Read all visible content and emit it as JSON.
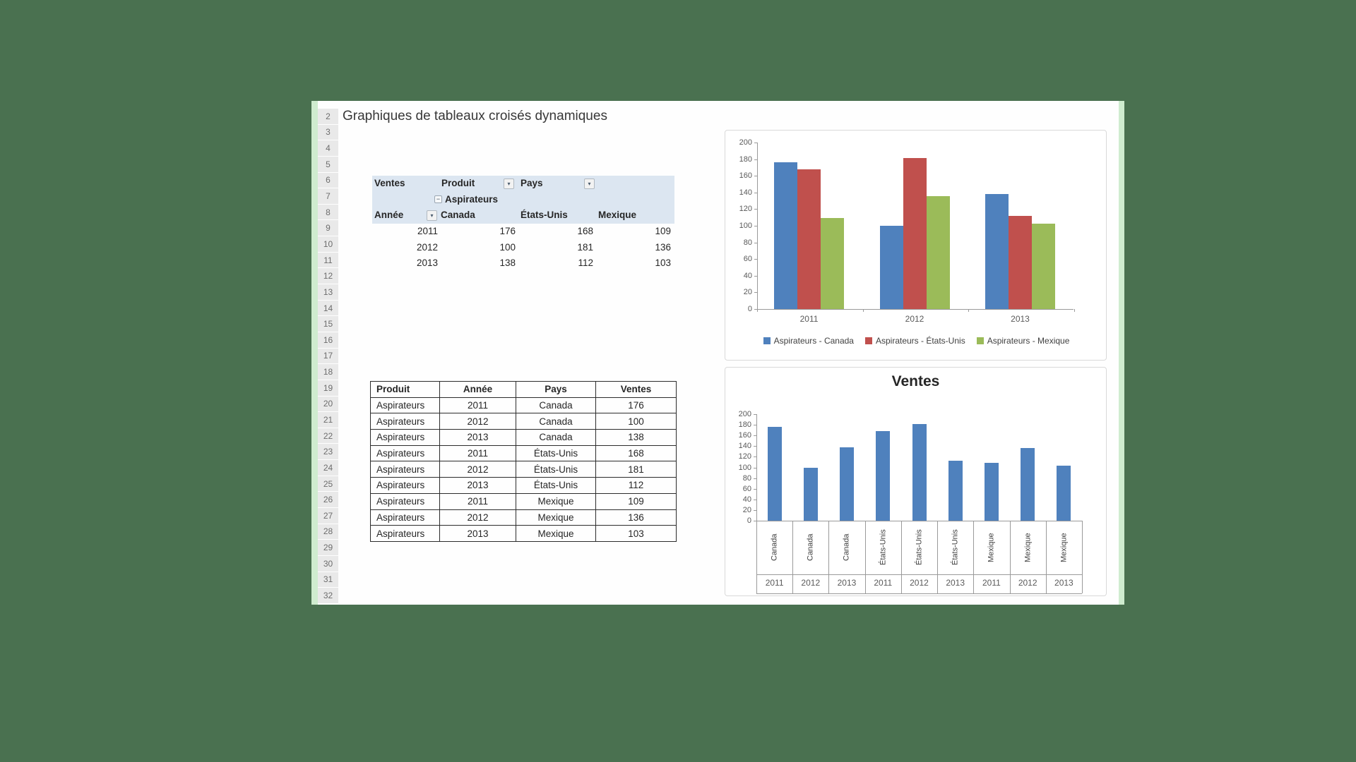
{
  "colors": {
    "desktop_background": "#4a7150",
    "sheet_background": "#fefefe",
    "row_margin_green": "#cfeccf",
    "row_header_fill": "#e9e9e9",
    "pivot_header_fill": "#dce6f1",
    "series_blue": "#4f81bd",
    "series_red": "#c0504d",
    "series_green": "#9bbb59"
  },
  "icons": {
    "dropdown": "▾",
    "collapse": "−"
  },
  "sheet": {
    "title": "Graphiques de tableaux croisés dynamiques",
    "row_numbers": [
      2,
      3,
      4,
      5,
      6,
      7,
      8,
      9,
      10,
      11,
      12,
      13,
      14,
      15,
      16,
      17,
      18,
      19,
      20,
      21,
      22,
      23,
      24,
      25,
      26,
      27,
      28,
      29,
      30,
      31,
      32
    ]
  },
  "pivot_table": {
    "corner_label": "Ventes",
    "column_field_label": "Produit",
    "page_field_label": "Pays",
    "group_label": "Aspirateurs",
    "row_field_label": "Année",
    "column_headers": [
      "Canada",
      "États-Unis",
      "Mexique"
    ],
    "rows": [
      {
        "year": "2011",
        "values": [
          "176",
          "168",
          "109"
        ]
      },
      {
        "year": "2012",
        "values": [
          "100",
          "181",
          "136"
        ]
      },
      {
        "year": "2013",
        "values": [
          "138",
          "112",
          "103"
        ]
      }
    ]
  },
  "data_table": {
    "headers": [
      "Produit",
      "Année",
      "Pays",
      "Ventes"
    ],
    "rows": [
      [
        "Aspirateurs",
        "2011",
        "Canada",
        "176"
      ],
      [
        "Aspirateurs",
        "2012",
        "Canada",
        "100"
      ],
      [
        "Aspirateurs",
        "2013",
        "Canada",
        "138"
      ],
      [
        "Aspirateurs",
        "2011",
        "États-Unis",
        "168"
      ],
      [
        "Aspirateurs",
        "2012",
        "États-Unis",
        "181"
      ],
      [
        "Aspirateurs",
        "2013",
        "États-Unis",
        "112"
      ],
      [
        "Aspirateurs",
        "2011",
        "Mexique",
        "109"
      ],
      [
        "Aspirateurs",
        "2012",
        "Mexique",
        "136"
      ],
      [
        "Aspirateurs",
        "2013",
        "Mexique",
        "103"
      ]
    ]
  },
  "chart_data": [
    {
      "type": "bar",
      "title": "",
      "categories": [
        "2011",
        "2012",
        "2013"
      ],
      "series": [
        {
          "name": "Aspirateurs - Canada",
          "color": "#4f81bd",
          "values": [
            176,
            100,
            138
          ]
        },
        {
          "name": "Aspirateurs - États-Unis",
          "color": "#c0504d",
          "values": [
            168,
            181,
            112
          ]
        },
        {
          "name": "Aspirateurs - Mexique",
          "color": "#9bbb59",
          "values": [
            109,
            136,
            103
          ]
        }
      ],
      "ylim": [
        0,
        200
      ],
      "ytick_step": 20,
      "grid": false,
      "legend_position": "bottom"
    },
    {
      "type": "bar",
      "title": "Ventes",
      "categories": [
        {
          "country": "Canada",
          "year": "2011"
        },
        {
          "country": "Canada",
          "year": "2012"
        },
        {
          "country": "Canada",
          "year": "2013"
        },
        {
          "country": "États-Unis",
          "year": "2011"
        },
        {
          "country": "États-Unis",
          "year": "2012"
        },
        {
          "country": "États-Unis",
          "year": "2013"
        },
        {
          "country": "Mexique",
          "year": "2011"
        },
        {
          "country": "Mexique",
          "year": "2012"
        },
        {
          "country": "Mexique",
          "year": "2013"
        }
      ],
      "values": [
        176,
        100,
        138,
        168,
        181,
        112,
        109,
        136,
        103
      ],
      "color": "#4f81bd",
      "ylim": [
        0,
        200
      ],
      "ytick_step": 20,
      "grid": false
    }
  ]
}
